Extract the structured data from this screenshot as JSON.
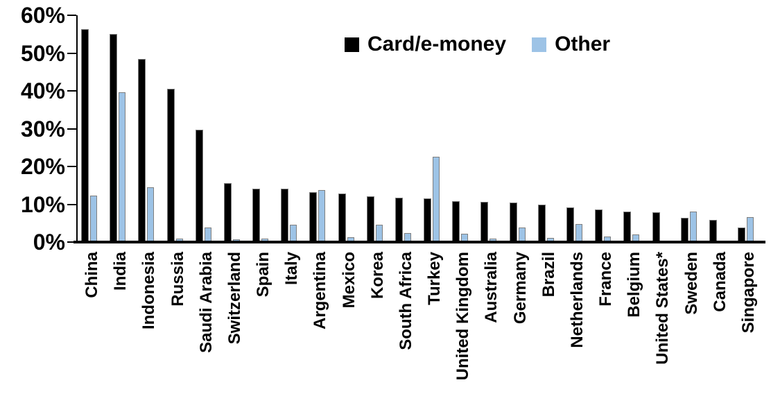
{
  "chart_data": {
    "type": "bar",
    "title": "",
    "categories": [
      "China",
      "India",
      "Indonesia",
      "Russia",
      "Saudi Arabia",
      "Switzerland",
      "Spain",
      "Italy",
      "Argentina",
      "Mexico",
      "Korea",
      "South Africa",
      "Turkey",
      "United Kingdom",
      "Australia",
      "Germany",
      "Brazil",
      "Netherlands",
      "France",
      "Belgium",
      "United States*",
      "Sweden",
      "Canada",
      "Singapore"
    ],
    "series": [
      {
        "name": "Card/e-money",
        "color": "#000000",
        "values": [
          56.4,
          55.1,
          48.4,
          40.5,
          29.8,
          15.6,
          14.2,
          14.1,
          13.3,
          12.9,
          12.2,
          11.7,
          11.5,
          10.9,
          10.7,
          10.5,
          9.9,
          9.2,
          8.6,
          8.1,
          7.9,
          6.5,
          5.9,
          3.8
        ]
      },
      {
        "name": "Other",
        "color": "#9DC3E6",
        "values": [
          12.3,
          39.7,
          14.5,
          0.9,
          3.9,
          0.7,
          0.9,
          4.5,
          13.8,
          1.3,
          4.6,
          2.3,
          22.5,
          2.2,
          0.9,
          3.9,
          1.1,
          4.8,
          1.5,
          2.0,
          0.3,
          8.0,
          0.0,
          6.6
        ]
      }
    ],
    "xlabel": "",
    "ylabel": "",
    "ylim": [
      0,
      60
    ],
    "y_ticks": [
      {
        "value": 0,
        "label": "0%"
      },
      {
        "value": 10,
        "label": "10%"
      },
      {
        "value": 20,
        "label": "20%"
      },
      {
        "value": 30,
        "label": "30%"
      },
      {
        "value": 40,
        "label": "40%"
      },
      {
        "value": 50,
        "label": "50%"
      },
      {
        "value": 60,
        "label": "60%"
      }
    ],
    "grid": false,
    "legend_position": "top-center",
    "axis_color": "#000000"
  }
}
